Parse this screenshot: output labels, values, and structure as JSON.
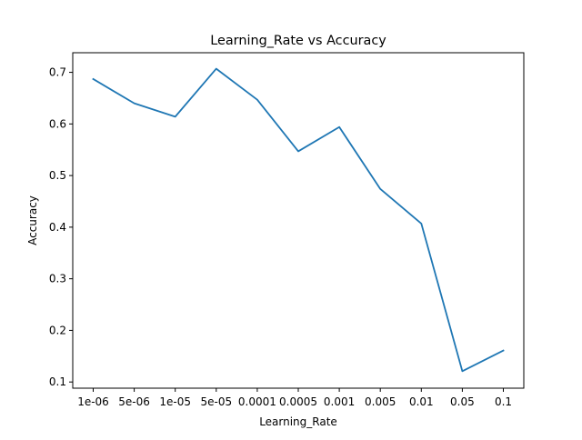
{
  "chart_data": {
    "type": "line",
    "title": "Learning_Rate vs Accuracy",
    "xlabel": "Learning_Rate",
    "ylabel": "Accuracy",
    "categories": [
      "1e-06",
      "5e-06",
      "1e-05",
      "5e-05",
      "0.0001",
      "0.0005",
      "0.001",
      "0.005",
      "0.01",
      "0.05",
      "0.1"
    ],
    "series": [
      {
        "values": [
          0.687,
          0.64,
          0.614,
          0.707,
          0.647,
          0.547,
          0.594,
          0.474,
          0.407,
          0.121,
          0.161
        ],
        "color": "#1f77b4"
      }
    ],
    "ylim": [
      0.088,
      0.738
    ],
    "yticks": [
      0.1,
      0.2,
      0.3,
      0.4,
      0.5,
      0.6,
      0.7
    ],
    "ytick_labels": [
      "0.1",
      "0.2",
      "0.3",
      "0.4",
      "0.5",
      "0.6",
      "0.7"
    ],
    "grid": false,
    "legend": "none"
  }
}
